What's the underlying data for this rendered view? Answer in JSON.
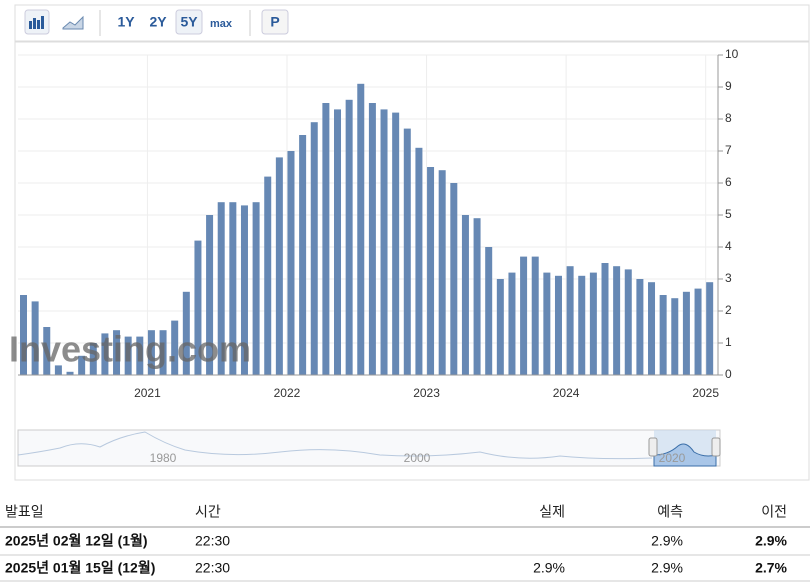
{
  "toolbar": {
    "buttons": [
      "1Y",
      "2Y",
      "5Y",
      "max",
      "P"
    ]
  },
  "watermark": "Investing.com",
  "chart_data": {
    "type": "bar",
    "color": "#6688b4",
    "categories": [
      null,
      null,
      null,
      null,
      null,
      null,
      null,
      null,
      null,
      null,
      null,
      "2021",
      null,
      null,
      null,
      null,
      null,
      null,
      null,
      null,
      null,
      null,
      null,
      "2022",
      null,
      null,
      null,
      null,
      null,
      null,
      null,
      null,
      null,
      null,
      null,
      "2023",
      null,
      null,
      null,
      null,
      null,
      null,
      null,
      null,
      null,
      null,
      null,
      "2024",
      null,
      null,
      null,
      null,
      null,
      null,
      null,
      null,
      null,
      null,
      null,
      "2025"
    ],
    "values": [
      2.5,
      2.3,
      1.5,
      0.3,
      0.1,
      0.6,
      1.0,
      1.3,
      1.4,
      1.2,
      1.2,
      1.4,
      1.4,
      1.7,
      2.6,
      4.2,
      5.0,
      5.4,
      5.4,
      5.3,
      5.4,
      6.2,
      6.8,
      7.0,
      7.5,
      7.9,
      8.5,
      8.3,
      8.6,
      9.1,
      8.5,
      8.3,
      8.2,
      7.7,
      7.1,
      6.5,
      6.4,
      6.0,
      5.0,
      4.9,
      4.0,
      3.0,
      3.2,
      3.7,
      3.7,
      3.2,
      3.1,
      3.4,
      3.1,
      3.2,
      3.5,
      3.4,
      3.3,
      3.0,
      2.9,
      2.5,
      2.4,
      2.6,
      2.7,
      2.9
    ],
    "ylim": [
      0,
      10
    ],
    "yticks": [
      0,
      1,
      2,
      3,
      4,
      5,
      6,
      7,
      8,
      9,
      10
    ],
    "grid": true
  },
  "navigator": {
    "labels": [
      "1980",
      "2000",
      "2020"
    ]
  },
  "table": {
    "headers": [
      "발표일",
      "시간",
      "실제",
      "예측",
      "이전"
    ],
    "rows": [
      [
        "2025년 02월 12일 (1월)",
        "22:30",
        "",
        "2.9%",
        "2.9%"
      ],
      [
        "2025년 01월 15일 (12월)",
        "22:30",
        "2.9%",
        "2.9%",
        "2.7%"
      ]
    ]
  }
}
